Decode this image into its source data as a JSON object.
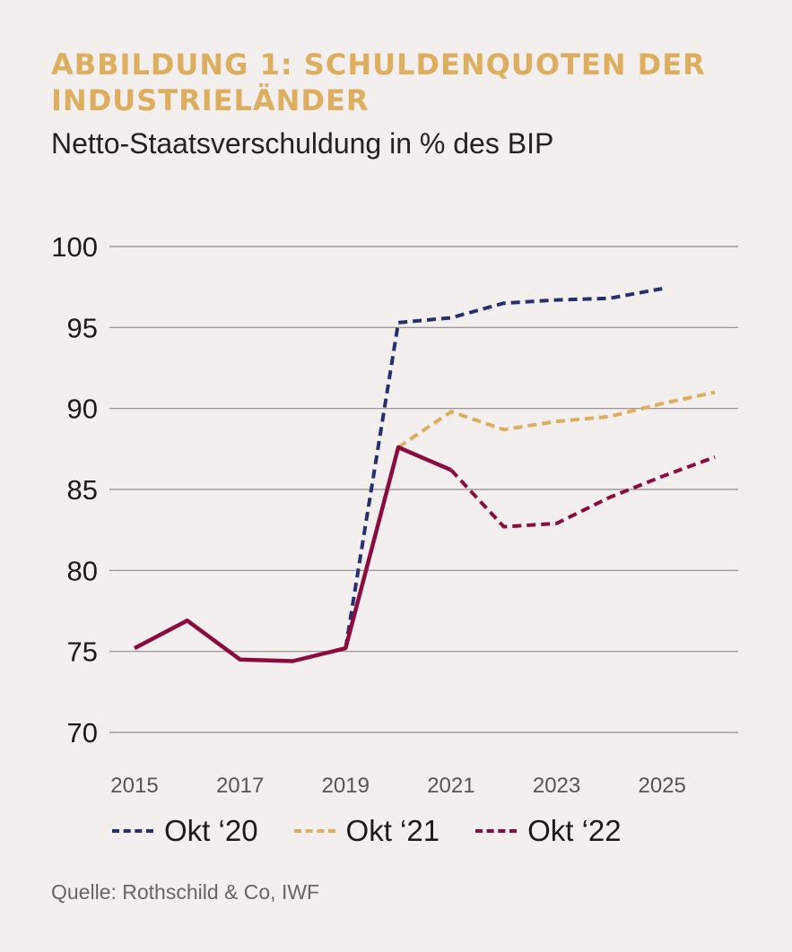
{
  "title": "ABBILDUNG 1: SCHULDENQUOTEN DER INDUSTRIELÄNDER",
  "subtitle": "Netto-Staatsverschuldung in % des BIP",
  "source": "Quelle: Rothschild & Co, IWF",
  "chart_data": {
    "type": "line",
    "title": "ABBILDUNG 1: SCHULDENQUOTEN DER INDUSTRIELÄNDER",
    "subtitle": "Netto-Staatsverschuldung in % des BIP",
    "xlabel": "",
    "ylabel": "",
    "xlim": [
      2015,
      2026
    ],
    "ylim": [
      70,
      100
    ],
    "yticks": [
      70,
      75,
      80,
      85,
      90,
      95,
      100
    ],
    "xticks": [
      2015,
      2017,
      2019,
      2021,
      2023,
      2025
    ],
    "grid": "horizontal",
    "legend": "bottom",
    "series": [
      {
        "name": "Okt ‘20",
        "color": "#27306e",
        "style": "dashed",
        "x": [
          2019,
          2020,
          2021,
          2022,
          2023,
          2024,
          2025
        ],
        "values": [
          75.2,
          95.3,
          95.6,
          96.5,
          96.7,
          96.8,
          97.4
        ]
      },
      {
        "name": "Okt ‘21",
        "color": "#dcae5e",
        "style": "dashed",
        "x": [
          2020,
          2021,
          2022,
          2023,
          2024,
          2025,
          2026
        ],
        "values": [
          87.6,
          89.8,
          88.7,
          89.2,
          89.5,
          90.3,
          91.0
        ]
      },
      {
        "name": "Okt ‘22",
        "color": "#8b0b3f",
        "style": "solid-then-dashed",
        "solid_until": 2021,
        "x": [
          2015,
          2016,
          2017,
          2018,
          2019,
          2020,
          2021,
          2022,
          2023,
          2024,
          2025,
          2026
        ],
        "values": [
          75.2,
          76.9,
          74.5,
          74.4,
          75.2,
          87.6,
          86.2,
          82.7,
          82.9,
          84.5,
          85.8,
          87.0
        ]
      }
    ]
  }
}
